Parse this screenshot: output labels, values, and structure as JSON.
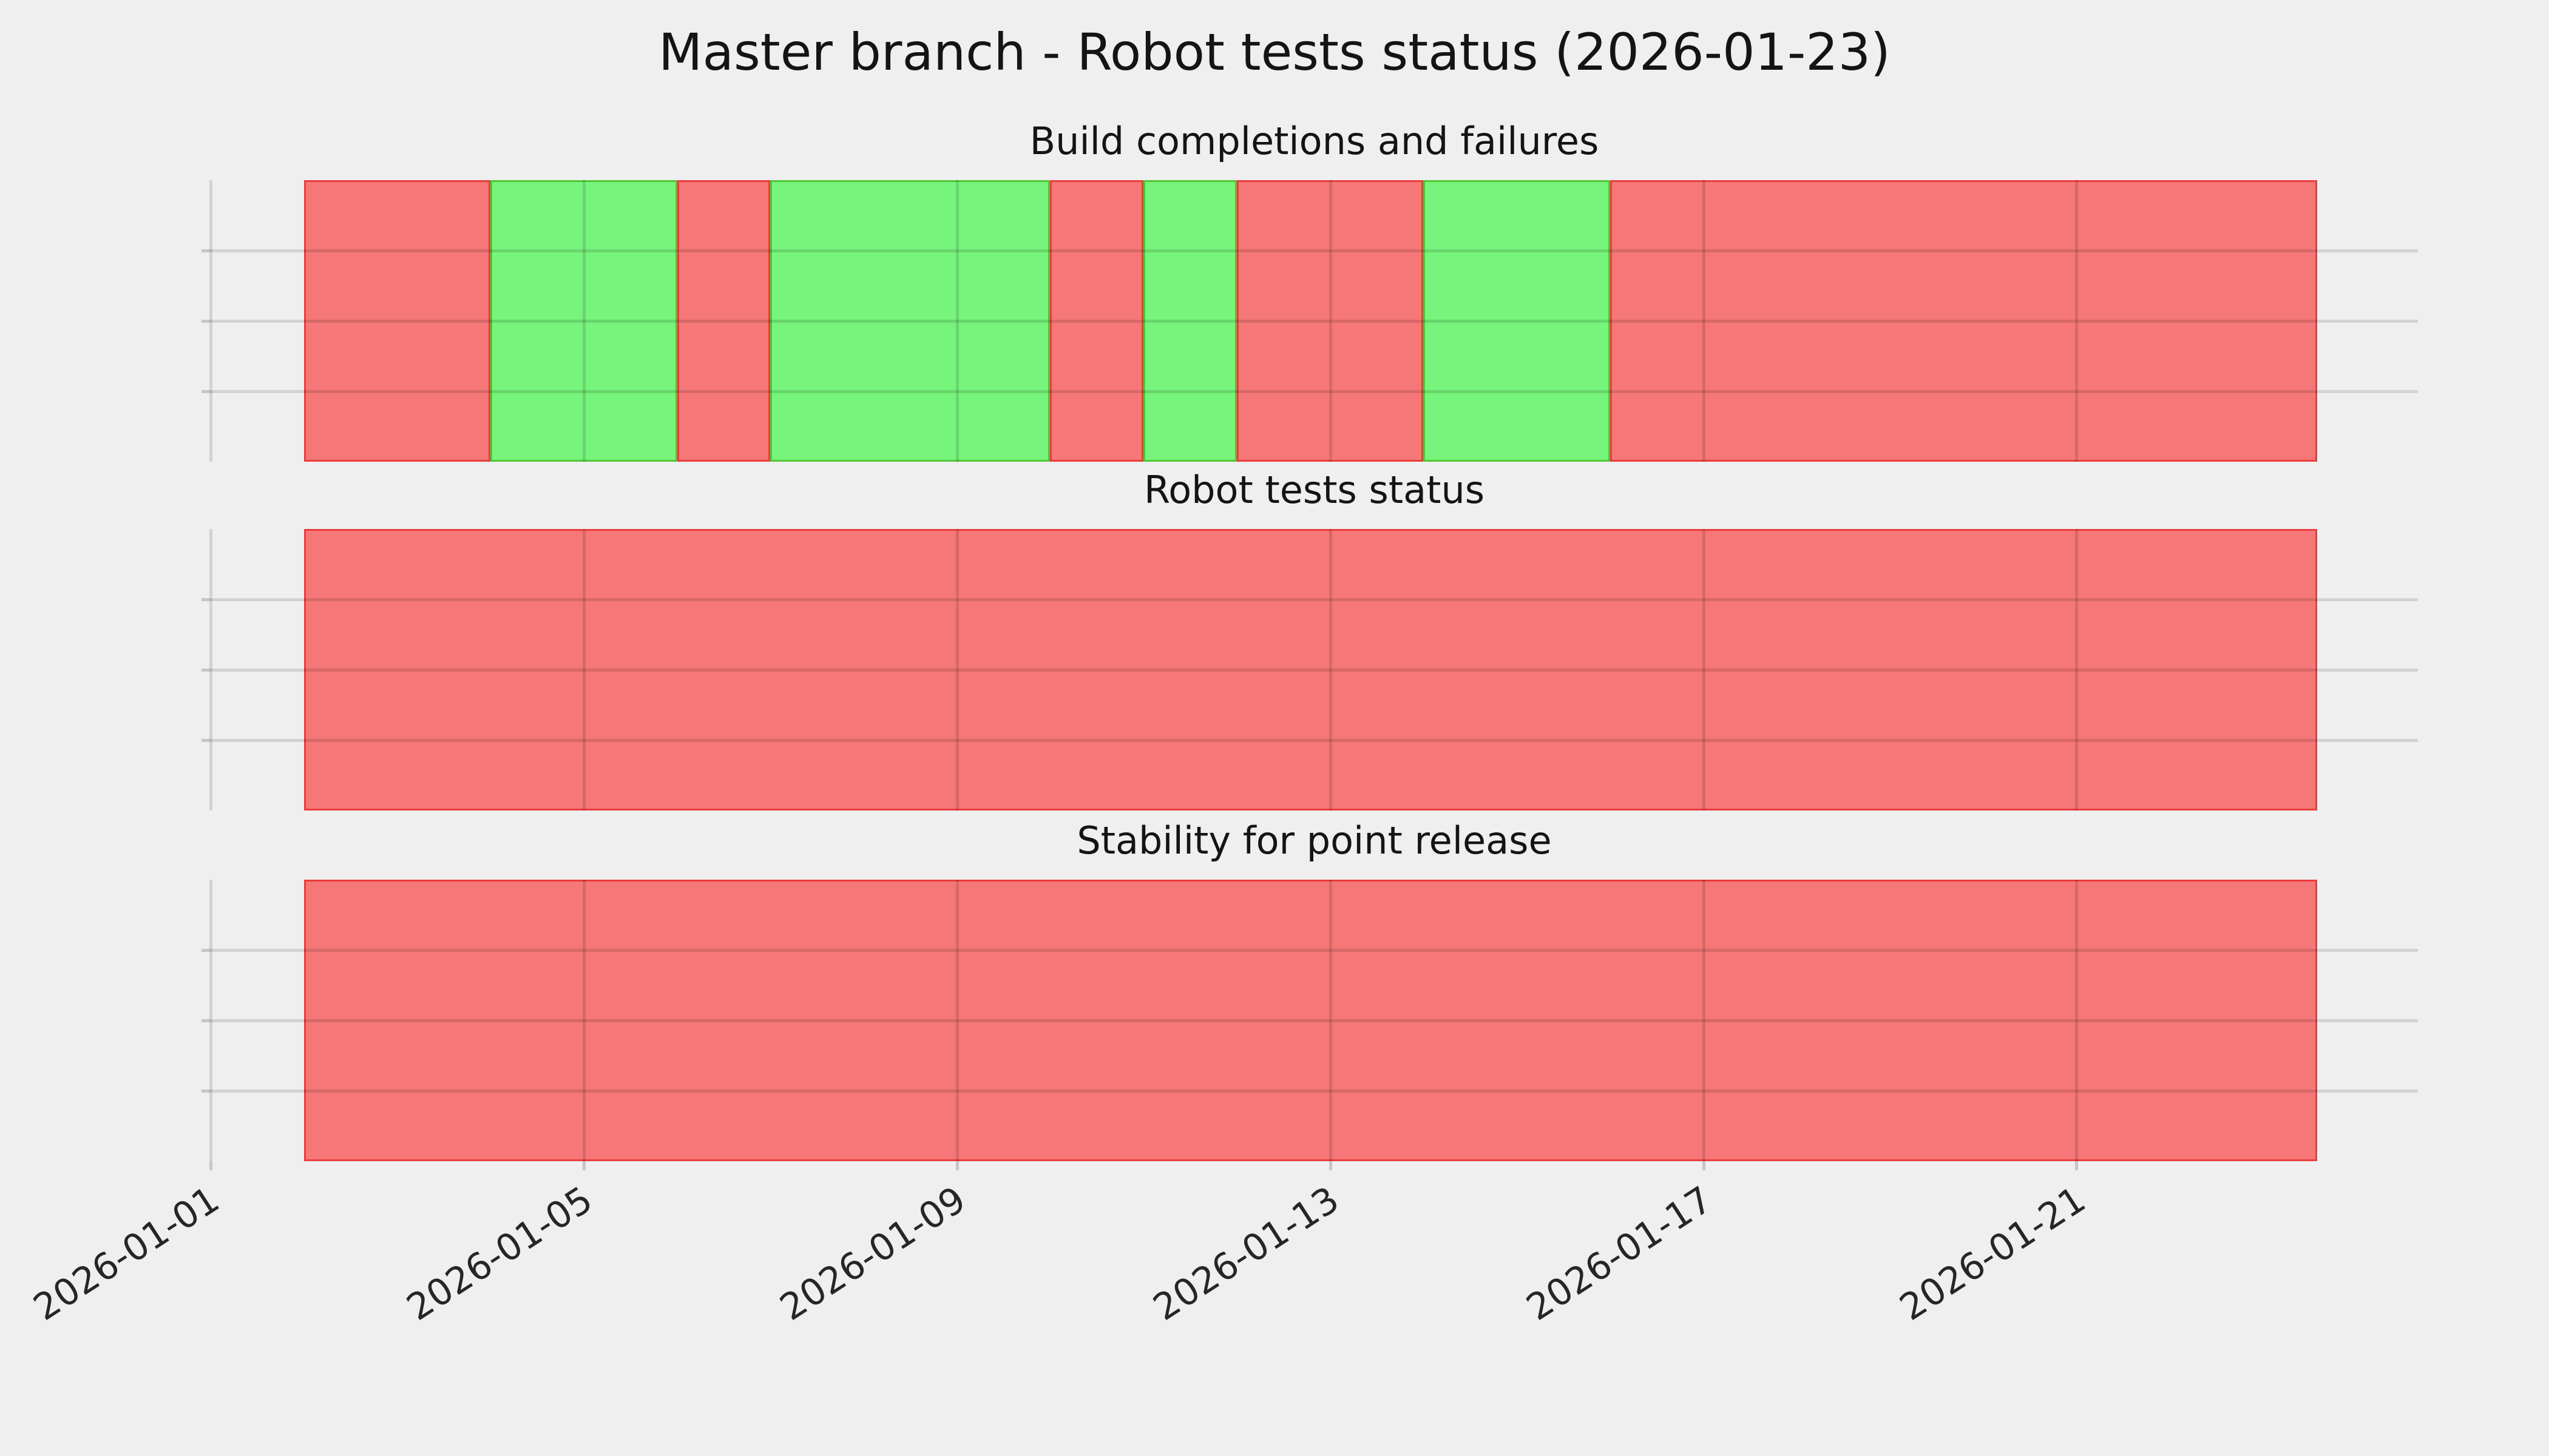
{
  "figure": {
    "title": "Master branch - Robot tests status (2026-01-23)",
    "background": "#EFEFEF"
  },
  "palette": {
    "fail_fill": "#F67777",
    "pass_fill": "#77F47B",
    "fail_edge": "rgba(230,40,40,0.75)",
    "pass_edge": "rgba(70,190,40,0.85)",
    "grid": "rgba(0,0,0,0.12)",
    "tick": "rgba(0,0,0,0.17)",
    "text": "#141414",
    "tick_label": "#262626"
  },
  "x_axis": {
    "tick_labels": [
      "2026-01-01",
      "2026-01-05",
      "2026-01-09",
      "2026-01-13",
      "2026-01-17",
      "2026-01-21"
    ],
    "tick_days": [
      1,
      5,
      9,
      13,
      17,
      21
    ]
  },
  "charts": [
    {
      "title": "Build completions and failures"
    },
    {
      "title": "Robot tests status"
    },
    {
      "title": "Stability for point release"
    }
  ],
  "chart_data": [
    {
      "type": "bar",
      "title": "Build completions and failures",
      "x": [
        "2026-01-02",
        "2026-01-03",
        "2026-01-04",
        "2026-01-05",
        "2026-01-06",
        "2026-01-07",
        "2026-01-08",
        "2026-01-09",
        "2026-01-10",
        "2026-01-11",
        "2026-01-12",
        "2026-01-13",
        "2026-01-14",
        "2026-01-15",
        "2026-01-16",
        "2026-01-17",
        "2026-01-18",
        "2026-01-19",
        "2026-01-20",
        "2026-01-21",
        "2026-01-22",
        "2026-01-23"
      ],
      "status": [
        "fail",
        "fail",
        "pass",
        "pass",
        "fail",
        "pass",
        "pass",
        "pass",
        "fail",
        "pass",
        "fail",
        "fail",
        "pass",
        "pass",
        "fail",
        "fail",
        "fail",
        "fail",
        "fail",
        "fail",
        "fail",
        "fail"
      ],
      "status_colors": {
        "pass": "green",
        "fail": "red"
      },
      "last_bar_fraction": 0.58,
      "xlim": [
        "2026-01-01",
        "2026-01-24"
      ],
      "ylabel": "",
      "xlabel": "",
      "grid": true,
      "legend": "none"
    },
    {
      "type": "bar",
      "title": "Robot tests status",
      "x": [
        "2026-01-02",
        "2026-01-03",
        "2026-01-04",
        "2026-01-05",
        "2026-01-06",
        "2026-01-07",
        "2026-01-08",
        "2026-01-09",
        "2026-01-10",
        "2026-01-11",
        "2026-01-12",
        "2026-01-13",
        "2026-01-14",
        "2026-01-15",
        "2026-01-16",
        "2026-01-17",
        "2026-01-18",
        "2026-01-19",
        "2026-01-20",
        "2026-01-21",
        "2026-01-22",
        "2026-01-23"
      ],
      "status": [
        "fail",
        "fail",
        "fail",
        "fail",
        "fail",
        "fail",
        "fail",
        "fail",
        "fail",
        "fail",
        "fail",
        "fail",
        "fail",
        "fail",
        "fail",
        "fail",
        "fail",
        "fail",
        "fail",
        "fail",
        "fail",
        "fail"
      ],
      "status_colors": {
        "pass": "green",
        "fail": "red"
      },
      "last_bar_fraction": 0.58,
      "xlim": [
        "2026-01-01",
        "2026-01-24"
      ],
      "ylabel": "",
      "xlabel": "",
      "grid": true,
      "legend": "none"
    },
    {
      "type": "bar",
      "title": "Stability for point release",
      "x": [
        "2026-01-02",
        "2026-01-03",
        "2026-01-04",
        "2026-01-05",
        "2026-01-06",
        "2026-01-07",
        "2026-01-08",
        "2026-01-09",
        "2026-01-10",
        "2026-01-11",
        "2026-01-12",
        "2026-01-13",
        "2026-01-14",
        "2026-01-15",
        "2026-01-16",
        "2026-01-17",
        "2026-01-18",
        "2026-01-19",
        "2026-01-20",
        "2026-01-21",
        "2026-01-22",
        "2026-01-23"
      ],
      "status": [
        "fail",
        "fail",
        "fail",
        "fail",
        "fail",
        "fail",
        "fail",
        "fail",
        "fail",
        "fail",
        "fail",
        "fail",
        "fail",
        "fail",
        "fail",
        "fail",
        "fail",
        "fail",
        "fail",
        "fail",
        "fail",
        "fail"
      ],
      "status_colors": {
        "pass": "green",
        "fail": "red"
      },
      "last_bar_fraction": 0.58,
      "xlim": [
        "2026-01-01",
        "2026-01-24"
      ],
      "ylabel": "",
      "xlabel": "",
      "grid": true,
      "legend": "none"
    }
  ]
}
